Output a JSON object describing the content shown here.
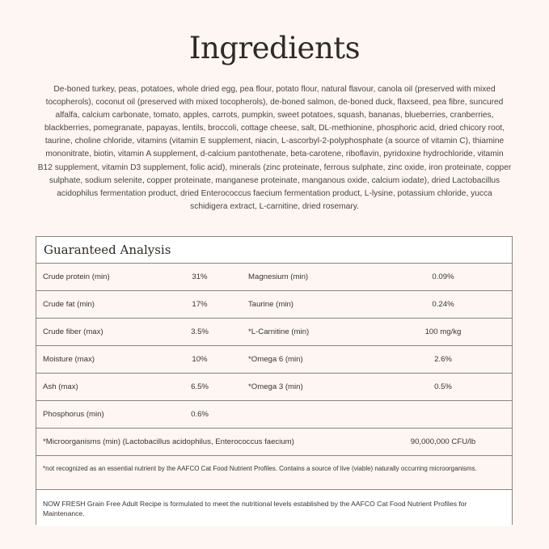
{
  "title": "Ingredients",
  "ingredients_lines": [
    "De-boned turkey, peas, potatoes, whole dried egg, pea flour, potato flour, natural flavour, canola oil (preserved with mixed",
    "tocopherols), coconut oil (preserved with mixed tocopherols), de-boned salmon, de-boned duck, flaxseed, pea fibre, suncured",
    "alfalfa, calcium carbonate, tomato, apples, carrots, pumpkin, sweet potatoes, squash, bananas, blueberries, cranberries,",
    "blackberries, pomegranate, papayas, lentils, broccoli, cottage cheese, salt, DL-methionine, phosphoric acid, dried chicory root,",
    "taurine, choline chloride, vitamins (vitamin E supplement, niacin, L-ascorbyl-2-polyphosphate (a source of vitamin C), thiamine",
    "mononitrate, biotin, vitamin A supplement, d-calcium pantothenate, beta-carotene, riboflavin, pyridoxine hydrochloride, vitamin",
    "B12 supplement, vitamin D3 supplement, folic acid), minerals (zinc proteinate, ferrous sulphate, zinc oxide, iron proteinate, copper",
    "sulphate, sodium selenite, copper proteinate, manganese proteinate, manganous oxide, calcium iodate), dried Lactobacillus",
    "acidophilus fermentation product, dried Enterococcus faecium fermentation product, L-lysine, potassium chloride, yucca",
    "schidigera extract, L-carnitine, dried rosemary."
  ],
  "analysis": {
    "title": "Guaranteed Analysis",
    "rows": [
      {
        "label1": "Crude protein (min)",
        "value1": "31%",
        "label2": "Magnesium (min)",
        "value2": "0.09%"
      },
      {
        "label1": "Crude fat (min)",
        "value1": "17%",
        "label2": "Taurine (min)",
        "value2": "0.24%"
      },
      {
        "label1": "Crude fiber (max)",
        "value1": "3.5%",
        "label2": "*L-Carnitine (min)",
        "value2": "100 mg/kg"
      },
      {
        "label1": "Moisture (max)",
        "value1": "10%",
        "label2": "*Omega 6 (min)",
        "value2": "2.6%"
      },
      {
        "label1": "Ash (max)",
        "value1": "6.5%",
        "label2": "*Omega 3 (min)",
        "value2": "0.5%"
      },
      {
        "label1": "Phosphorus (min)",
        "value1": "0.6%",
        "label2": "",
        "value2": ""
      }
    ],
    "micro": {
      "label": "*Microorganisms (min) (Lactobacillus acidophilus, Enterococcus faecium)",
      "value": "90,000,000 CFU/lb"
    },
    "footnote": "*not recognized as an essential nutrient by the AAFCO Cat Food Nutrient Profiles. Contains a source of live (viable) naturally occurring microorganisms.",
    "statement": "NOW FRESH Grain Free Adult Recipe is formulated to meet the nutritional levels established by the AAFCO Cat Food Nutrient Profiles for Maintenance."
  },
  "colors": {
    "background": "#fdf6f2",
    "border": "#8a8480",
    "text": "#3a3531"
  }
}
